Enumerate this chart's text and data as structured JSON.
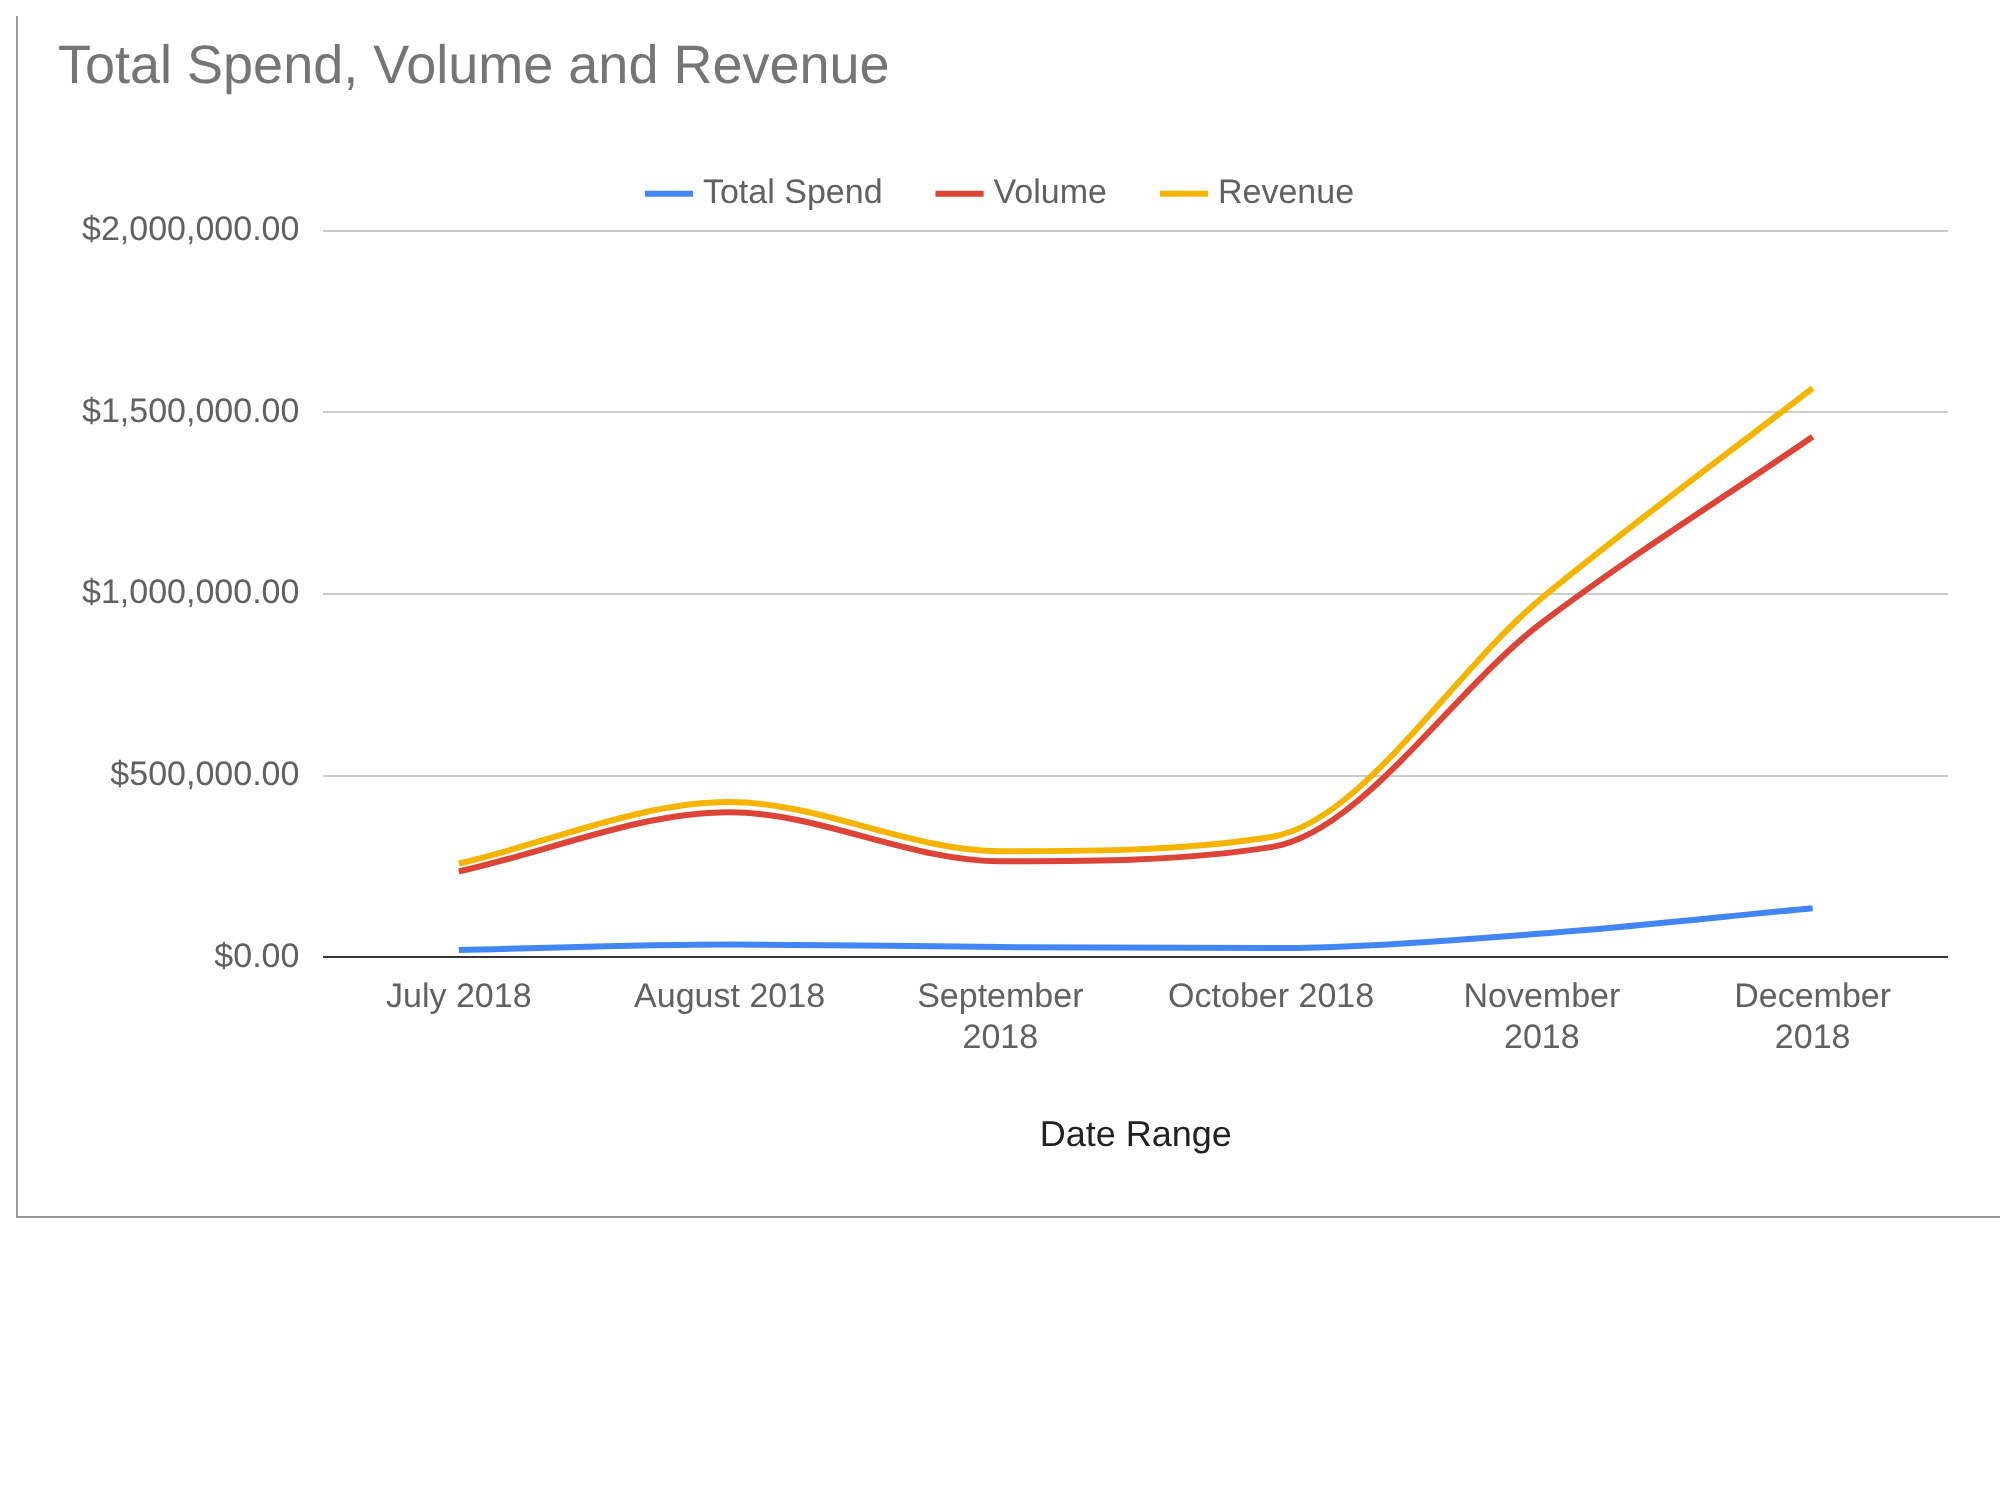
{
  "chart_data": {
    "type": "line",
    "title": "Total Spend, Volume and Revenue",
    "xlabel": "Date Range",
    "categories": [
      "July 2018",
      "August 2018",
      "September 2018",
      "October 2018",
      "November 2018",
      "December 2018"
    ],
    "series": [
      {
        "name": "Total Spend",
        "color": "#4285f4",
        "values": [
          20000,
          35000,
          28000,
          25000,
          65000,
          135000
        ]
      },
      {
        "name": "Volume",
        "color": "#db4437",
        "values": [
          236000,
          399000,
          264000,
          303000,
          921000,
          1433000
        ]
      },
      {
        "name": "Revenue",
        "color": "#f4b400",
        "values": [
          258000,
          427000,
          292000,
          331000,
          989000,
          1567000
        ]
      }
    ],
    "ylim": [
      0,
      2000000
    ],
    "yticks": [
      {
        "value": 0,
        "label": "$0.00"
      },
      {
        "value": 500000,
        "label": "$500,000.00"
      },
      {
        "value": 1000000,
        "label": "$1,000,000.00"
      },
      {
        "value": 1500000,
        "label": "$1,500,000.00"
      },
      {
        "value": 2000000,
        "label": "$2,000,000.00"
      }
    ],
    "grid": "y",
    "legend": "top",
    "marker": "none",
    "line_style": "solid"
  }
}
